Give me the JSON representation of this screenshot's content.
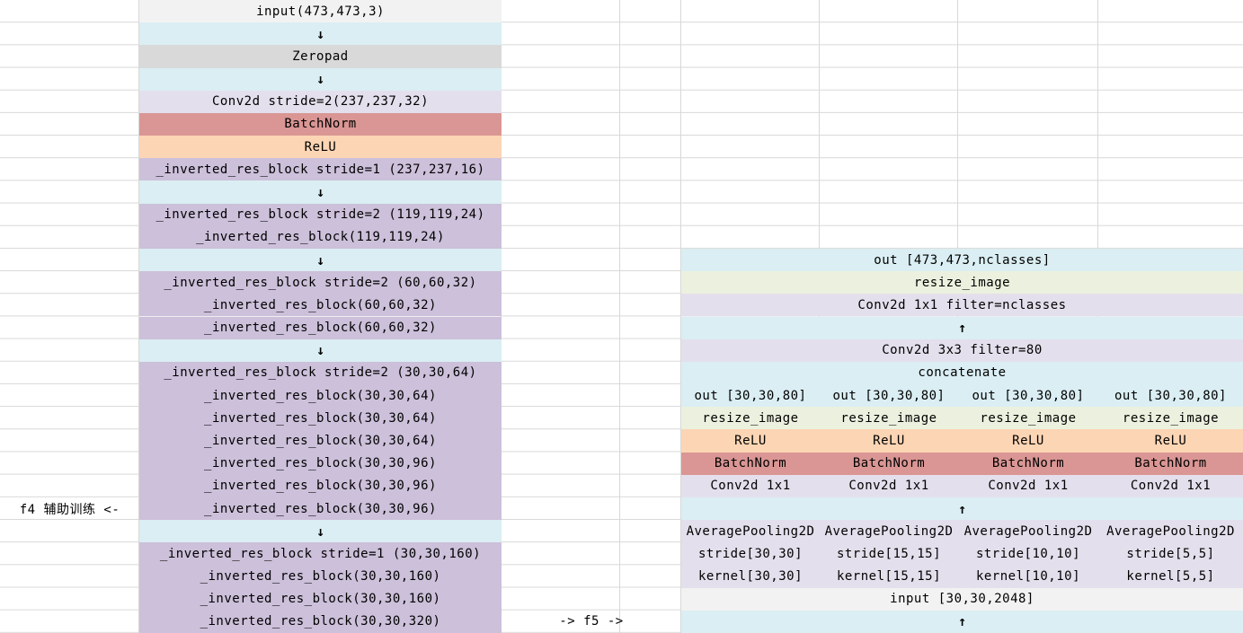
{
  "sheet": {
    "gridline_color": "#d8d8d8",
    "background": "#ffffff"
  },
  "palette": {
    "input_fill": "#f2f2f2",
    "arrow_fill": "#daeef3",
    "zeropad_fill": "#d9d9d9",
    "conv_fill": "#e4dfec",
    "batchnorm_fill": "#da9694",
    "relu_fill": "#fcd5b4",
    "res_block_fill": "#ccc0da",
    "resize_fill": "#ebf1de",
    "out_concat_fill": "#daeef3"
  },
  "annotations": {
    "f4_label": "f4 辅助训练 <-",
    "f5_label": "-> f5 ->"
  },
  "backbone": {
    "rows": [
      {
        "label": "input(473,473,3)",
        "type": "input"
      },
      {
        "label": "↓",
        "type": "arrow"
      },
      {
        "label": "Zeropad",
        "type": "zeropad"
      },
      {
        "label": "↓",
        "type": "arrow"
      },
      {
        "label": "Conv2d stride=2(237,237,32)",
        "type": "conv"
      },
      {
        "label": "BatchNorm",
        "type": "batchnorm"
      },
      {
        "label": "ReLU",
        "type": "relu"
      },
      {
        "label": "_inverted_res_block stride=1 (237,237,16)",
        "type": "res_block"
      },
      {
        "label": "↓",
        "type": "arrow"
      },
      {
        "label": "_inverted_res_block stride=2 (119,119,24)",
        "type": "res_block"
      },
      {
        "label": "_inverted_res_block(119,119,24)",
        "type": "res_block"
      },
      {
        "label": "↓",
        "type": "arrow"
      },
      {
        "label": "_inverted_res_block stride=2 (60,60,32)",
        "type": "res_block"
      },
      {
        "label": "_inverted_res_block(60,60,32)",
        "type": "res_block"
      },
      {
        "label": "_inverted_res_block(60,60,32)",
        "type": "res_block"
      },
      {
        "label": "↓",
        "type": "arrow"
      },
      {
        "label": "_inverted_res_block stride=2 (30,30,64)",
        "type": "res_block"
      },
      {
        "label": "_inverted_res_block(30,30,64)",
        "type": "res_block"
      },
      {
        "label": "_inverted_res_block(30,30,64)",
        "type": "res_block"
      },
      {
        "label": "_inverted_res_block(30,30,64)",
        "type": "res_block"
      },
      {
        "label": "_inverted_res_block(30,30,96)",
        "type": "res_block"
      },
      {
        "label": "_inverted_res_block(30,30,96)",
        "type": "res_block"
      },
      {
        "label": "_inverted_res_block(30,30,96)",
        "type": "res_block"
      },
      {
        "label": "↓",
        "type": "arrow"
      },
      {
        "label": "_inverted_res_block stride=1 (30,30,160)",
        "type": "res_block"
      },
      {
        "label": "_inverted_res_block(30,30,160)",
        "type": "res_block"
      },
      {
        "label": "_inverted_res_block(30,30,160)",
        "type": "res_block"
      },
      {
        "label": "_inverted_res_block(30,30,320)",
        "type": "res_block"
      }
    ]
  },
  "head": {
    "out_row": "out [473,473,nclasses]",
    "resize_row": "resize_image",
    "conv1x1_nclasses_row": "Conv2d 1x1 filter=nclasses",
    "arrow_up_1": "↑",
    "conv3x3_row": "Conv2d 3x3 filter=80",
    "concat_row": "concatenate",
    "branch_out": [
      "out [30,30,80]",
      "out [30,30,80]",
      "out [30,30,80]",
      "out [30,30,80]"
    ],
    "branch_resize": [
      "resize_image",
      "resize_image",
      "resize_image",
      "resize_image"
    ],
    "branch_relu": [
      "ReLU",
      "ReLU",
      "ReLU",
      "ReLU"
    ],
    "branch_batchnorm": [
      "BatchNorm",
      "BatchNorm",
      "BatchNorm",
      "BatchNorm"
    ],
    "branch_conv": [
      "Conv2d 1x1",
      "Conv2d 1x1",
      "Conv2d 1x1",
      "Conv2d 1x1"
    ],
    "arrow_up_2": "↑",
    "branch_pool": [
      "AveragePooling2D",
      "AveragePooling2D",
      "AveragePooling2D",
      "AveragePooling2D"
    ],
    "branch_stride": [
      "stride[30,30]",
      "stride[15,15]",
      "stride[10,10]",
      "stride[5,5]"
    ],
    "branch_kernel": [
      "kernel[30,30]",
      "kernel[15,15]",
      "kernel[10,10]",
      "kernel[5,5]"
    ],
    "input_row": "input [30,30,2048]",
    "arrow_up_3": "↑"
  }
}
